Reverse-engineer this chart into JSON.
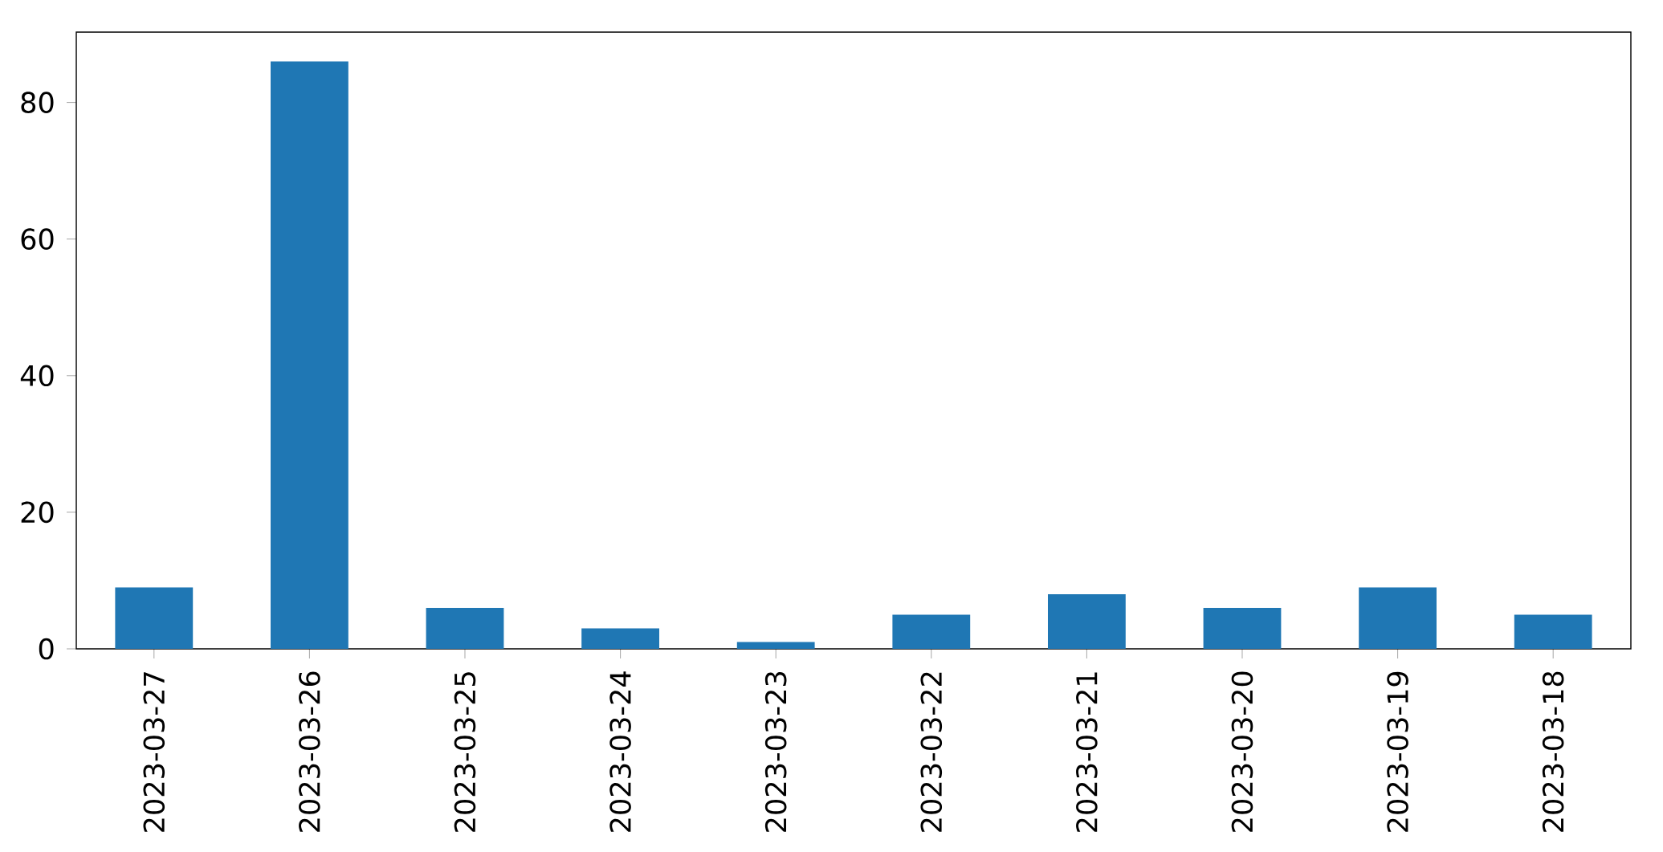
{
  "chart_data": {
    "type": "bar",
    "categories": [
      "2023-03-27",
      "2023-03-26",
      "2023-03-25",
      "2023-03-24",
      "2023-03-23",
      "2023-03-22",
      "2023-03-21",
      "2023-03-20",
      "2023-03-19",
      "2023-03-18"
    ],
    "values": [
      9,
      86,
      6,
      3,
      1,
      5,
      8,
      6,
      9,
      5
    ],
    "color": "#1f77b4",
    "ylim": [
      0,
      90.3
    ],
    "yticks": [
      0,
      20,
      40,
      60,
      80
    ]
  }
}
